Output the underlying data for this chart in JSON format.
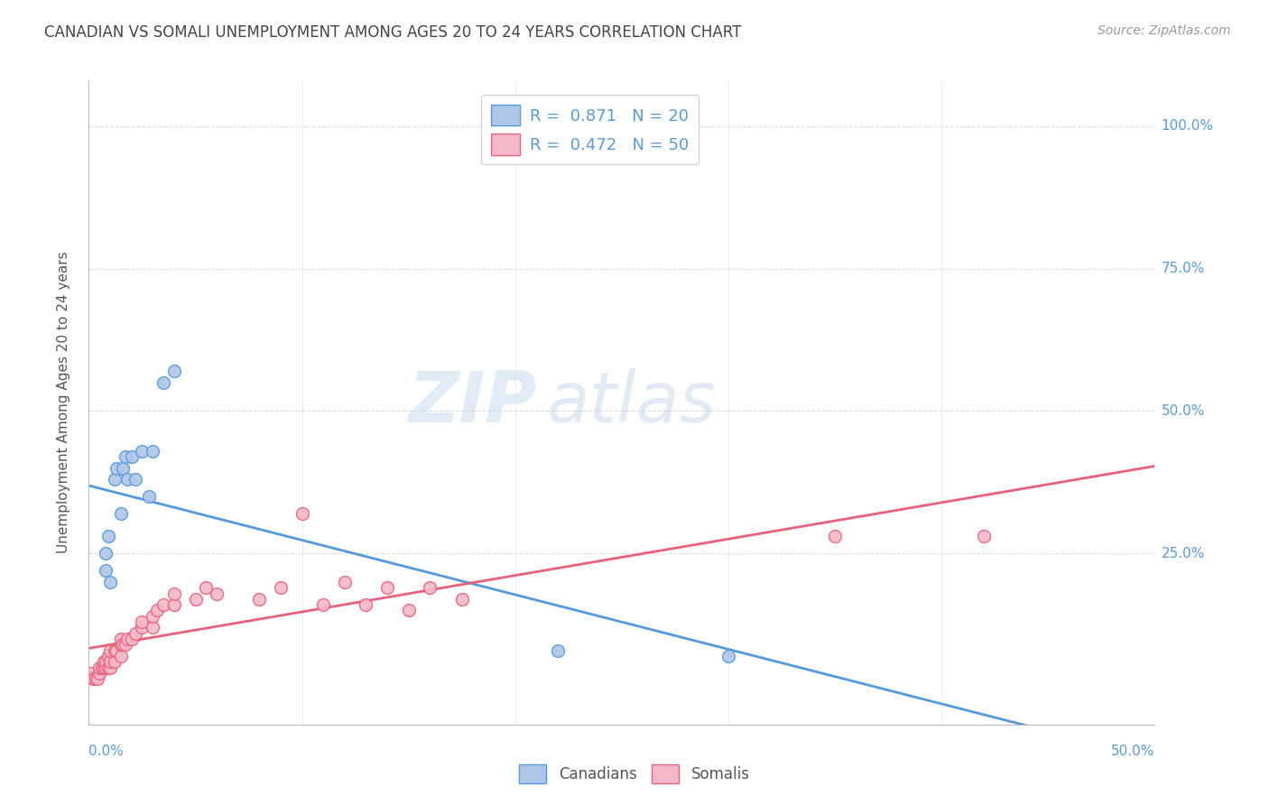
{
  "title": "CANADIAN VS SOMALI UNEMPLOYMENT AMONG AGES 20 TO 24 YEARS CORRELATION CHART",
  "source": "Source: ZipAtlas.com",
  "ylabel": "Unemployment Among Ages 20 to 24 years",
  "y_tick_labels": [
    "100.0%",
    "75.0%",
    "50.0%",
    "25.0%"
  ],
  "y_tick_values": [
    1.0,
    0.75,
    0.5,
    0.25
  ],
  "x_tick_labels": [
    "0.0%",
    "50.0%"
  ],
  "xlim": [
    0.0,
    0.5
  ],
  "ylim": [
    -0.05,
    1.08
  ],
  "legend_label1": "R =  0.871   N = 20",
  "legend_label2": "R =  0.472   N = 50",
  "legend_bottom_label1": "Canadians",
  "legend_bottom_label2": "Somalis",
  "canadian_color": "#aec6e8",
  "somali_color": "#f5b8c8",
  "line_canadian_color": "#5599dd",
  "line_somali_color": "#e8607a",
  "watermark_zip": "ZIP",
  "watermark_atlas": "atlas",
  "canadians_x": [
    0.005,
    0.008,
    0.008,
    0.009,
    0.01,
    0.012,
    0.013,
    0.015,
    0.016,
    0.017,
    0.018,
    0.02,
    0.022,
    0.025,
    0.028,
    0.03,
    0.035,
    0.04,
    0.22,
    0.3
  ],
  "canadians_y": [
    0.04,
    0.22,
    0.25,
    0.28,
    0.2,
    0.38,
    0.4,
    0.32,
    0.4,
    0.42,
    0.38,
    0.42,
    0.38,
    0.43,
    0.35,
    0.43,
    0.55,
    0.57,
    0.08,
    0.07
  ],
  "somalis_x": [
    0.001,
    0.002,
    0.003,
    0.004,
    0.005,
    0.005,
    0.006,
    0.007,
    0.007,
    0.008,
    0.008,
    0.009,
    0.009,
    0.01,
    0.01,
    0.01,
    0.012,
    0.012,
    0.013,
    0.015,
    0.015,
    0.015,
    0.016,
    0.017,
    0.018,
    0.02,
    0.022,
    0.025,
    0.025,
    0.03,
    0.03,
    0.032,
    0.035,
    0.04,
    0.04,
    0.05,
    0.055,
    0.06,
    0.08,
    0.09,
    0.1,
    0.11,
    0.12,
    0.13,
    0.14,
    0.15,
    0.16,
    0.175,
    0.35,
    0.42
  ],
  "somalis_y": [
    0.04,
    0.03,
    0.03,
    0.03,
    0.04,
    0.05,
    0.05,
    0.05,
    0.06,
    0.05,
    0.06,
    0.05,
    0.07,
    0.05,
    0.06,
    0.08,
    0.06,
    0.08,
    0.08,
    0.07,
    0.09,
    0.1,
    0.09,
    0.09,
    0.1,
    0.1,
    0.11,
    0.12,
    0.13,
    0.12,
    0.14,
    0.15,
    0.16,
    0.16,
    0.18,
    0.17,
    0.19,
    0.18,
    0.17,
    0.19,
    0.32,
    0.16,
    0.2,
    0.16,
    0.19,
    0.15,
    0.19,
    0.17,
    0.28,
    0.28
  ],
  "background_color": "#ffffff",
  "grid_color": "#dddddd",
  "title_color": "#444444",
  "right_label_color": "#5b9bd5",
  "marker_size": 100
}
